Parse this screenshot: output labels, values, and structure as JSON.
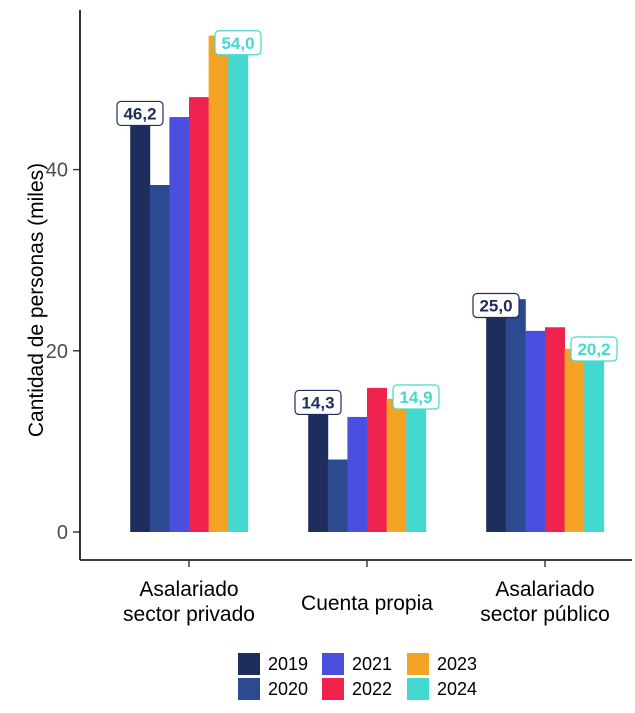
{
  "chart_data": {
    "type": "bar",
    "ylabel": "Cantidad de personas (miles)",
    "ylim": [
      0,
      58
    ],
    "yticks": [
      0,
      20,
      40
    ],
    "grid": false,
    "legend_position": "bottom",
    "categories": [
      [
        "Asalariado",
        "sector privado"
      ],
      [
        "Cuenta propia"
      ],
      [
        "Asalariado",
        "sector público"
      ]
    ],
    "series": [
      {
        "name": "2019",
        "color": "#1f2d5c",
        "values": [
          46.2,
          14.3,
          25.0
        ]
      },
      {
        "name": "2020",
        "color": "#2c4a8f",
        "values": [
          38.3,
          8.0,
          25.7
        ]
      },
      {
        "name": "2021",
        "color": "#4b4fe0",
        "values": [
          45.8,
          12.7,
          22.2
        ]
      },
      {
        "name": "2022",
        "color": "#f0234f",
        "values": [
          48.0,
          15.9,
          22.6
        ]
      },
      {
        "name": "2023",
        "color": "#f5a325",
        "values": [
          54.8,
          14.7,
          20.2
        ]
      },
      {
        "name": "2024",
        "color": "#44d9cf",
        "values": [
          54.0,
          14.9,
          20.2
        ]
      }
    ],
    "data_labels": [
      {
        "category": 0,
        "series": 0,
        "text": "46,2"
      },
      {
        "category": 0,
        "series": 5,
        "text": "54,0"
      },
      {
        "category": 1,
        "series": 0,
        "text": "14,3"
      },
      {
        "category": 1,
        "series": 5,
        "text": "14,9"
      },
      {
        "category": 2,
        "series": 0,
        "text": "25,0"
      },
      {
        "category": 2,
        "series": 5,
        "text": "20,2"
      }
    ]
  }
}
